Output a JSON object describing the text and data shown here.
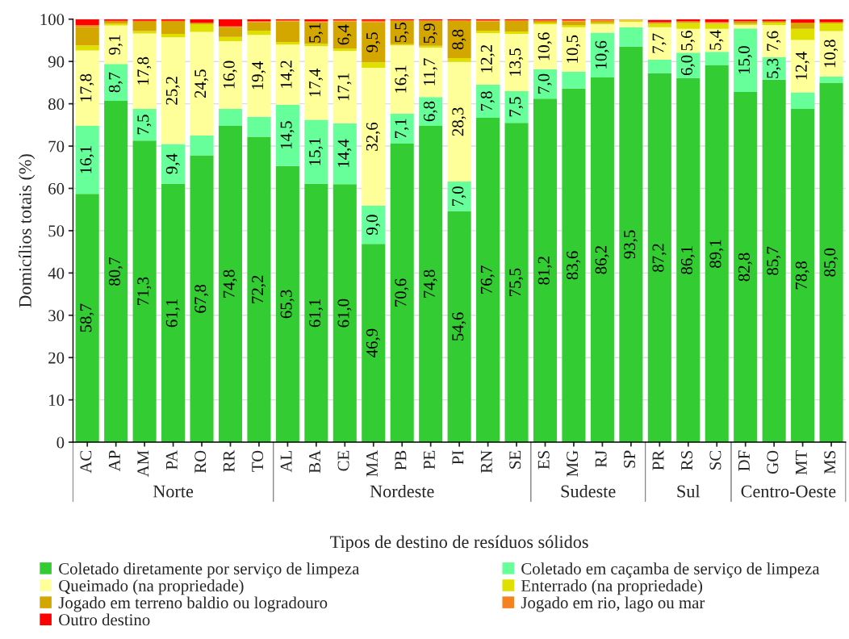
{
  "chart_data": {
    "type": "bar",
    "stacked": true,
    "xlabel": "Tipos de destino de resíduos sólidos",
    "ylabel": "Domicílios totais (%)",
    "categories": [
      "AC",
      "AP",
      "AM",
      "PA",
      "RO",
      "RR",
      "TO",
      "AL",
      "BA",
      "CE",
      "MA",
      "PB",
      "PE",
      "PI",
      "RN",
      "SE",
      "ES",
      "MG",
      "RJ",
      "SP",
      "PR",
      "RS",
      "SC",
      "DF",
      "GO",
      "MT",
      "MS"
    ],
    "ylim": [
      0,
      100
    ],
    "yticks": [
      0,
      10,
      20,
      30,
      40,
      50,
      60,
      70,
      80,
      90,
      100
    ],
    "grid": "y",
    "legend": "bottom",
    "annotations": [
      "Norte",
      "Nordeste",
      "Sudeste",
      "Sul",
      "Centro-Oeste"
    ],
    "series": [
      {
        "name": "Coletado diretamente por serviço de limpeza",
        "color": "#33cc33",
        "values": [
          58.7,
          80.7,
          71.3,
          61.1,
          67.8,
          74.8,
          72.2,
          65.3,
          61.1,
          61.0,
          46.9,
          70.6,
          74.8,
          54.6,
          76.7,
          75.5,
          81.2,
          83.6,
          86.2,
          93.5,
          87.2,
          86.1,
          89.1,
          82.8,
          85.7,
          78.8,
          85.0
        ],
        "value_labels": [
          "58,7",
          "80,7",
          "71,3",
          "61,1",
          "67,8",
          "74,8",
          "72,2",
          "65,3",
          "61,1",
          "61,0",
          "46,9",
          "70,6",
          "74,8",
          "54,6",
          "76,7",
          "75,5",
          "81,2",
          "83,6",
          "86,2",
          "93,5",
          "87,2",
          "86,1",
          "89,1",
          "82,8",
          "85,7",
          "78,8",
          "85,0"
        ]
      },
      {
        "name": "Coletado em caçamba de serviço de limpeza",
        "color": "#66ff99",
        "values": [
          16.1,
          8.7,
          7.5,
          9.4,
          4.7,
          4.0,
          4.7,
          14.5,
          15.1,
          14.4,
          9.0,
          7.1,
          6.8,
          7.0,
          7.8,
          7.5,
          7.0,
          4.0,
          10.6,
          4.6,
          3.2,
          6.0,
          3.2,
          15.0,
          5.3,
          3.9,
          1.4
        ],
        "value_labels": [
          "16,1",
          "8,7",
          "7,5",
          "9,4",
          null,
          null,
          null,
          "14,5",
          "15,1",
          "14,4",
          "9,0",
          "7,1",
          "6,8",
          "7,0",
          "7,8",
          "7,5",
          "7,0",
          null,
          "10,6",
          null,
          null,
          "6,0",
          null,
          "15,0",
          "5,3",
          null,
          null
        ]
      },
      {
        "name": "Queimado (na propriedade)",
        "color": "#ffff99",
        "values": [
          17.8,
          9.1,
          17.8,
          25.2,
          24.5,
          16.0,
          19.4,
          14.2,
          17.4,
          17.1,
          32.6,
          16.1,
          11.7,
          28.3,
          12.2,
          13.5,
          10.6,
          10.5,
          2.0,
          1.3,
          7.7,
          5.6,
          5.4,
          0.8,
          7.6,
          12.4,
          10.8
        ],
        "value_labels": [
          "17,8",
          "9,1",
          "17,8",
          "25,2",
          "24,5",
          "16,0",
          "19,4",
          "14,2",
          "17,4",
          "17,1",
          "32,6",
          "16,1",
          "11,7",
          "28,3",
          "12,2",
          "13,5",
          "10,6",
          "10,5",
          null,
          null,
          "7,7",
          "5,6",
          "5,4",
          null,
          "7,6",
          "12,4",
          "10,8"
        ]
      },
      {
        "name": "Enterrado (na propriedade)",
        "color": "#e0e000",
        "values": [
          1.2,
          0.5,
          0.6,
          0.8,
          1.8,
          1.0,
          1.0,
          0.6,
          0.6,
          0.6,
          1.3,
          0.3,
          0.4,
          0.9,
          0.6,
          0.6,
          0.4,
          0.5,
          0.3,
          0.3,
          0.8,
          1.4,
          1.2,
          0.3,
          0.6,
          2.6,
          1.8
        ]
      },
      {
        "name": "Jogado em terreno baldio ou logradouro",
        "color": "#d4a600",
        "values": [
          4.4,
          0.4,
          2.2,
          2.9,
          0.2,
          2.3,
          2.0,
          4.9,
          5.1,
          6.4,
          9.5,
          5.5,
          5.9,
          8.8,
          2.2,
          2.5,
          0.4,
          0.9,
          0.5,
          0.1,
          0.3,
          0.3,
          0.2,
          0.6,
          0.3,
          1.3,
          0.2
        ],
        "value_labels": [
          null,
          null,
          null,
          null,
          null,
          null,
          null,
          null,
          "5,1",
          "6,4",
          "9,5",
          "5,5",
          "5,9",
          "8,8",
          null,
          null,
          null,
          null,
          null,
          null,
          null,
          null,
          null,
          null,
          null,
          null,
          null
        ]
      },
      {
        "name": "Jogado em rio, lago ou mar",
        "color": "#f58220",
        "values": [
          0.4,
          0.2,
          0.2,
          0.2,
          0.2,
          0.2,
          0.2,
          0.2,
          0.2,
          0.2,
          0.3,
          0.1,
          0.1,
          0.1,
          0.2,
          0.1,
          0.1,
          0.2,
          0.2,
          0.1,
          0.1,
          0.1,
          0.2,
          null,
          null,
          0.2,
          0.1
        ]
      },
      {
        "name": "Outro destino",
        "color": "#ff0000",
        "values": [
          1.4,
          0.4,
          0.4,
          0.4,
          0.8,
          1.7,
          0.5,
          0.3,
          0.5,
          0.3,
          0.4,
          0.3,
          0.3,
          0.3,
          0.3,
          0.3,
          0.3,
          0.3,
          0.2,
          null,
          0.5,
          0.5,
          0.7,
          0.4,
          0.4,
          0.8,
          0.7
        ]
      }
    ]
  }
}
